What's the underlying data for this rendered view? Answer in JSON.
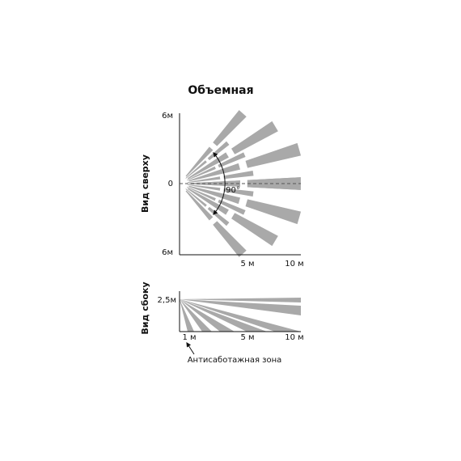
{
  "title": "Объемная",
  "top_view": {
    "label": "Вид сверху",
    "y_labels": [
      "6м",
      "0",
      "6м"
    ],
    "x_labels": [
      "5 м",
      "10 м"
    ],
    "angle": "90°"
  },
  "side_view": {
    "label": "Вид сбоку",
    "y_label": "2,5м",
    "x_labels": [
      "1 м",
      "5 м",
      "10 м"
    ],
    "annotation": "Антисаботажная зона"
  }
}
